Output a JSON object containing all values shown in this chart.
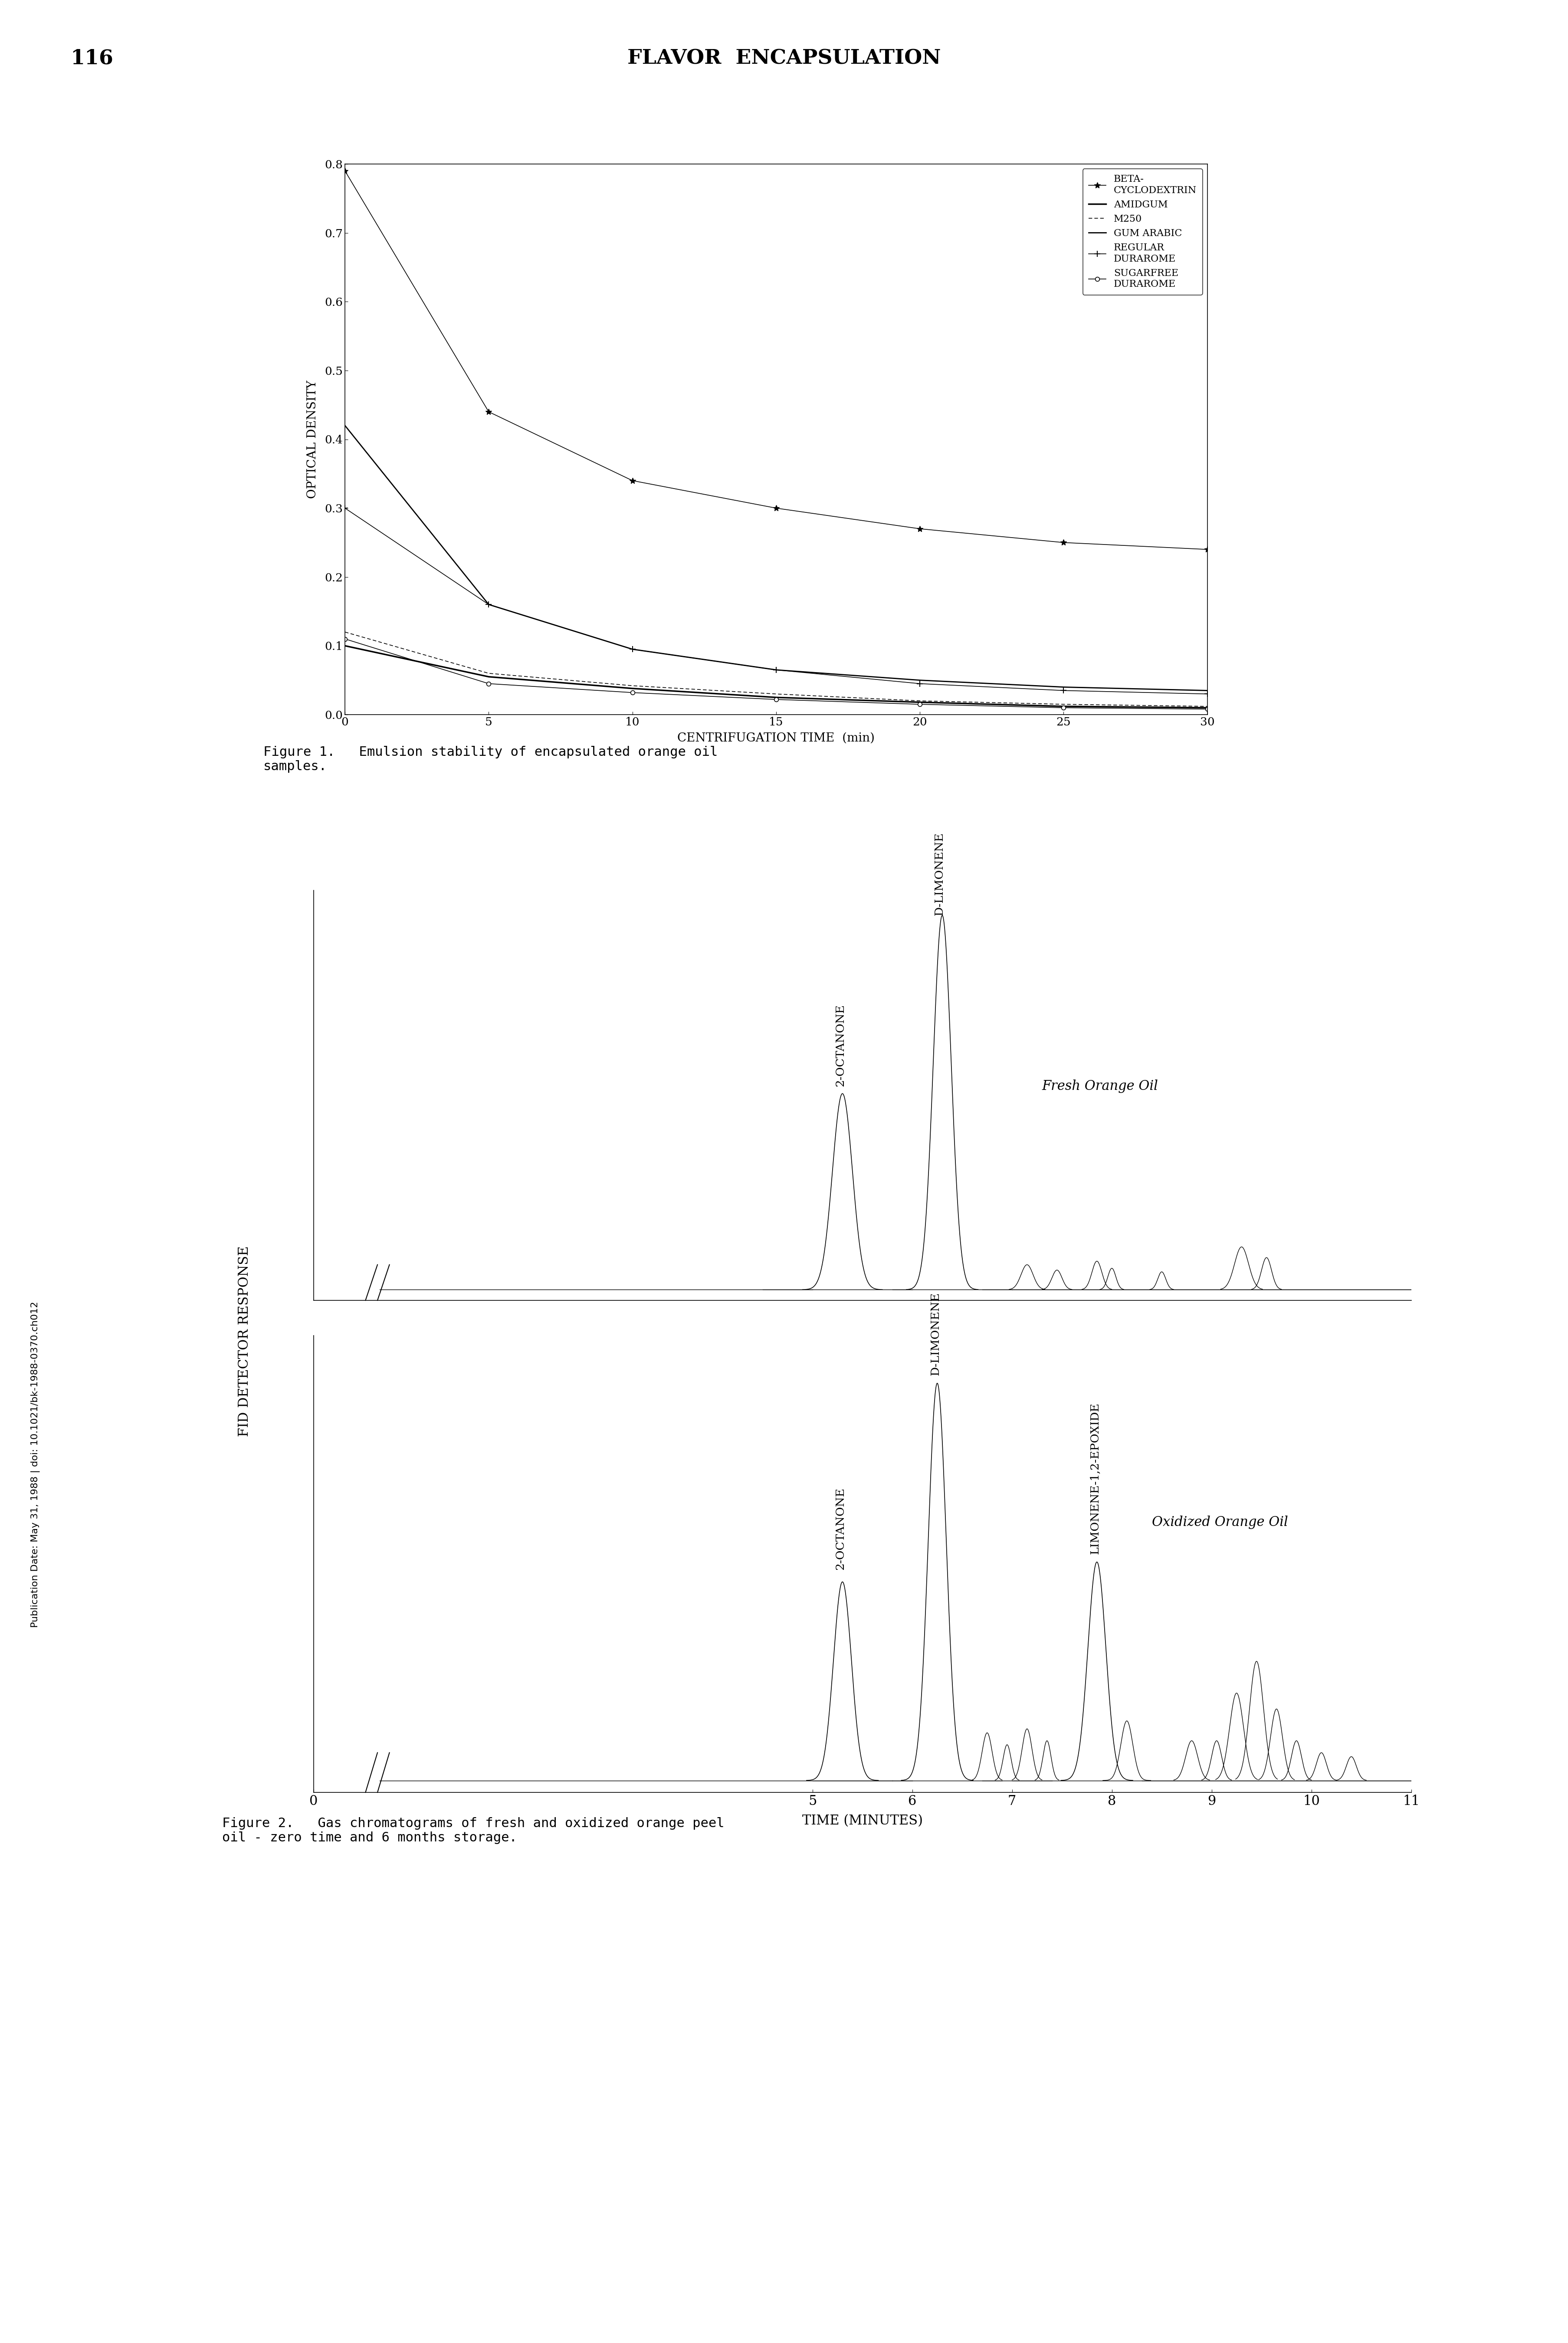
{
  "page_number": "116",
  "header_title": "FLAVOR  ENCAPSULATION",
  "sidebar_text": "Publication Date: May 31, 1988 | doi: 10.1021/bk-1988-0370.ch012",
  "fig1_title": "Figure 1.   Emulsion stability of encapsulated orange oil\nsamples.",
  "fig1_xlabel": "CENTRIFUGATION TIME  (min)",
  "fig1_ylabel": "OPTICAL DENSITY",
  "fig1_xlim": [
    0,
    30
  ],
  "fig1_ylim": [
    0,
    0.8
  ],
  "fig1_xticks": [
    0,
    5,
    10,
    15,
    20,
    25,
    30
  ],
  "fig1_yticks": [
    0,
    0.1,
    0.2,
    0.3,
    0.4,
    0.5,
    0.6,
    0.7,
    0.8
  ],
  "series": {
    "beta_cyclodextrin": {
      "label": "BETA-\nCYCLODEXTRIN",
      "x": [
        0,
        5,
        10,
        15,
        20,
        25,
        30
      ],
      "y": [
        0.79,
        0.44,
        0.34,
        0.3,
        0.27,
        0.25,
        0.24
      ]
    },
    "amidgum": {
      "label": "AMIDGUM",
      "x": [
        0,
        5,
        10,
        15,
        20,
        25,
        30
      ],
      "y": [
        0.1,
        0.055,
        0.038,
        0.025,
        0.018,
        0.012,
        0.01
      ]
    },
    "m250": {
      "label": "M250",
      "x": [
        0,
        5,
        10,
        15,
        20,
        25,
        30
      ],
      "y": [
        0.12,
        0.06,
        0.042,
        0.03,
        0.02,
        0.015,
        0.012
      ]
    },
    "gum_arabic": {
      "label": "GUM ARABIC",
      "x": [
        0,
        5,
        10,
        15,
        20,
        25,
        30
      ],
      "y": [
        0.42,
        0.16,
        0.095,
        0.065,
        0.05,
        0.04,
        0.035
      ]
    },
    "regular_durarome": {
      "label": "REGULAR\nDURAROME",
      "x": [
        0,
        5,
        10,
        15,
        20,
        25,
        30
      ],
      "y": [
        0.3,
        0.16,
        0.095,
        0.065,
        0.045,
        0.035,
        0.03
      ]
    },
    "sugarfree_durarome": {
      "label": "SUGARFREE\nDURAROME",
      "x": [
        0,
        5,
        10,
        15,
        20,
        25,
        30
      ],
      "y": [
        0.11,
        0.045,
        0.032,
        0.022,
        0.015,
        0.01,
        0.008
      ]
    }
  },
  "fig2_ylabel": "FID DETECTOR RESPONSE",
  "fig2_xlabel": "TIME (MINUTES)",
  "fig2_xticks": [
    0,
    5,
    6,
    7,
    8,
    9,
    10,
    11
  ],
  "fig2_caption": "Figure 2.   Gas chromatograms of fresh and oxidized orange peel\noil - zero time and 6 months storage."
}
